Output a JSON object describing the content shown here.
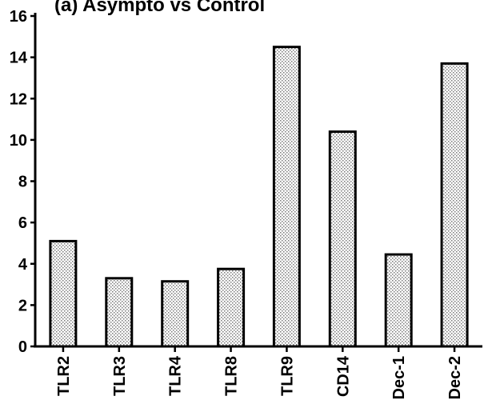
{
  "chart_data": {
    "type": "bar",
    "title": "(a) Asympto vs Control",
    "xlabel": "",
    "ylabel": "",
    "categories": [
      "TLR2",
      "TLR3",
      "TLR4",
      "TLR8",
      "TLR9",
      "CD14",
      "Dec-1",
      "Dec-2"
    ],
    "values": [
      5.1,
      3.3,
      3.15,
      3.75,
      14.5,
      10.4,
      4.45,
      13.7
    ],
    "ylim": [
      0,
      16
    ],
    "yticks": [
      "0",
      "2",
      "4",
      "6",
      "8",
      "10",
      "12",
      "14",
      "16"
    ],
    "bar_fill": "#d9d9d9",
    "grid": false,
    "legend": "none"
  }
}
